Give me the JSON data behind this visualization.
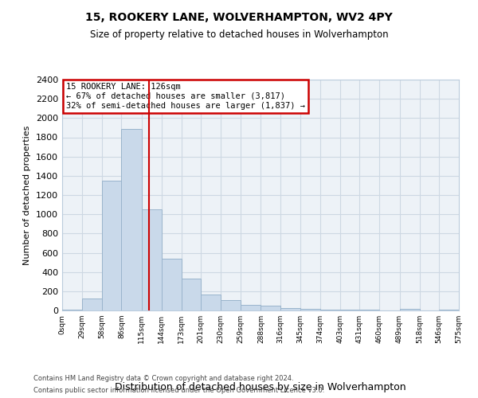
{
  "title": "15, ROOKERY LANE, WOLVERHAMPTON, WV2 4PY",
  "subtitle": "Size of property relative to detached houses in Wolverhampton",
  "xlabel": "Distribution of detached houses by size in Wolverhampton",
  "ylabel": "Number of detached properties",
  "footer1": "Contains HM Land Registry data © Crown copyright and database right 2024.",
  "footer2": "Contains public sector information licensed under the Open Government Licence v3.0.",
  "annotation_title": "15 ROOKERY LANE: 126sqm",
  "annotation_line1": "← 67% of detached houses are smaller (3,817)",
  "annotation_line2": "32% of semi-detached houses are larger (1,837) →",
  "property_size": 126,
  "bin_edges": [
    0,
    29,
    58,
    86,
    115,
    144,
    173,
    201,
    230,
    259,
    288,
    316,
    345,
    374,
    403,
    431,
    460,
    489,
    518,
    546,
    575
  ],
  "bar_heights": [
    10,
    125,
    1350,
    1890,
    1050,
    540,
    335,
    165,
    105,
    58,
    50,
    28,
    20,
    12,
    10,
    5,
    3,
    15,
    3,
    12
  ],
  "bar_color": "#c9d9ea",
  "bar_edge_color": "#9ab4cc",
  "line_color": "#cc0000",
  "annotation_box_color": "#cc0000",
  "grid_color": "#cdd8e3",
  "background_color": "#edf2f7",
  "ylim": [
    0,
    2400
  ],
  "yticks": [
    0,
    200,
    400,
    600,
    800,
    1000,
    1200,
    1400,
    1600,
    1800,
    2000,
    2200,
    2400
  ],
  "ytick_fontsize": 8,
  "xtick_fontsize": 6.5,
  "ylabel_fontsize": 8,
  "xlabel_fontsize": 9,
  "title_fontsize": 10,
  "subtitle_fontsize": 8.5,
  "footer_fontsize": 6
}
